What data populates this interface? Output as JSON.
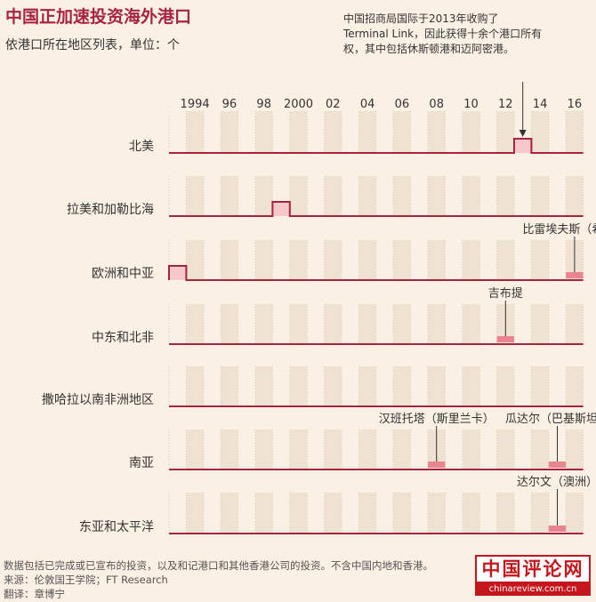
{
  "title": "中国正加速投资海外港口",
  "subtitle": "依港口所在地区列表，单位：个",
  "annotation_main": "中国招商局国际于2013年收购了Terminal Link，因此获得十余个港口所有权，其中包括休斯顿港和迈阿密港。",
  "footer": {
    "note": "数据包括已完成或已宣布的投资，以及和记港口和其他香港公司的投资。不含中国内地和香港。",
    "source": "来源：伦敦国王学院；FT Research",
    "translator": "翻译：章博宁"
  },
  "watermark": {
    "top": "中国评论网",
    "bottom": "chinareview.com.cn"
  },
  "chart_data": {
    "type": "step-area",
    "x_start": 1993,
    "x_tick_labels": [
      "1994",
      "96",
      "98",
      "2000",
      "02",
      "04",
      "06",
      "08",
      "10",
      "12",
      "14",
      "16"
    ],
    "colors": {
      "line": "#a8233f",
      "fill": "#f6c8cc",
      "highlight": "#e8858f",
      "grid": "#d8cdbd"
    },
    "series": [
      {
        "name": "北美",
        "values": [
          0,
          0,
          0,
          0,
          0,
          0,
          0,
          0,
          0,
          0,
          0,
          0,
          0,
          0,
          0,
          0,
          0,
          0,
          0,
          0,
          1,
          0,
          0,
          0
        ]
      },
      {
        "name": "拉美和加勒比海",
        "values": [
          0,
          0,
          0,
          0,
          0,
          0,
          1,
          0,
          0,
          0,
          0,
          0,
          0,
          0,
          0,
          0,
          0,
          0,
          0,
          0,
          0,
          0,
          0,
          0
        ]
      },
      {
        "name": "欧洲和中亚",
        "values": [
          1,
          0,
          0,
          0,
          0,
          0,
          0,
          0,
          0,
          0,
          0,
          0,
          0,
          0,
          0,
          0,
          0,
          0,
          0,
          0,
          0,
          0,
          0,
          0
        ]
      },
      {
        "name": "中东和北非",
        "values": [
          0,
          0,
          0,
          0,
          0,
          0,
          0,
          0,
          0,
          0,
          0,
          0,
          0,
          0,
          0,
          0,
          0,
          0,
          0,
          0,
          0,
          0,
          0,
          0
        ]
      },
      {
        "name": "撒哈拉以南非洲地区",
        "values": [
          0,
          0,
          0,
          0,
          0,
          0,
          0,
          0,
          0,
          0,
          0,
          0,
          0,
          0,
          0,
          0,
          0,
          0,
          0,
          0,
          0,
          0,
          0,
          0
        ]
      },
      {
        "name": "南亚",
        "values": [
          0,
          0,
          0,
          0,
          0,
          0,
          0,
          0,
          0,
          0,
          0,
          0,
          0,
          0,
          0,
          0,
          0,
          0,
          0,
          0,
          0,
          0,
          0,
          0
        ]
      },
      {
        "name": "东亚和太平洋",
        "values": [
          0,
          0,
          0,
          0,
          0,
          0,
          0,
          0,
          0,
          0,
          0,
          0,
          0,
          0,
          0,
          0,
          0,
          0,
          0,
          0,
          0,
          0,
          0,
          0
        ]
      }
    ],
    "annotations": [
      {
        "label": "比雷埃夫斯（希腊）",
        "series": 2,
        "year": 2016
      },
      {
        "label": "吉布提",
        "series": 3,
        "year": 2012
      },
      {
        "label": "汉班托塔（斯里兰卡）",
        "series": 5,
        "year": 2008
      },
      {
        "label": "瓜达尔（巴基斯坦）",
        "series": 5,
        "year": 2015
      },
      {
        "label": "达尔文（澳洲）",
        "series": 6,
        "year": 2015
      }
    ]
  }
}
